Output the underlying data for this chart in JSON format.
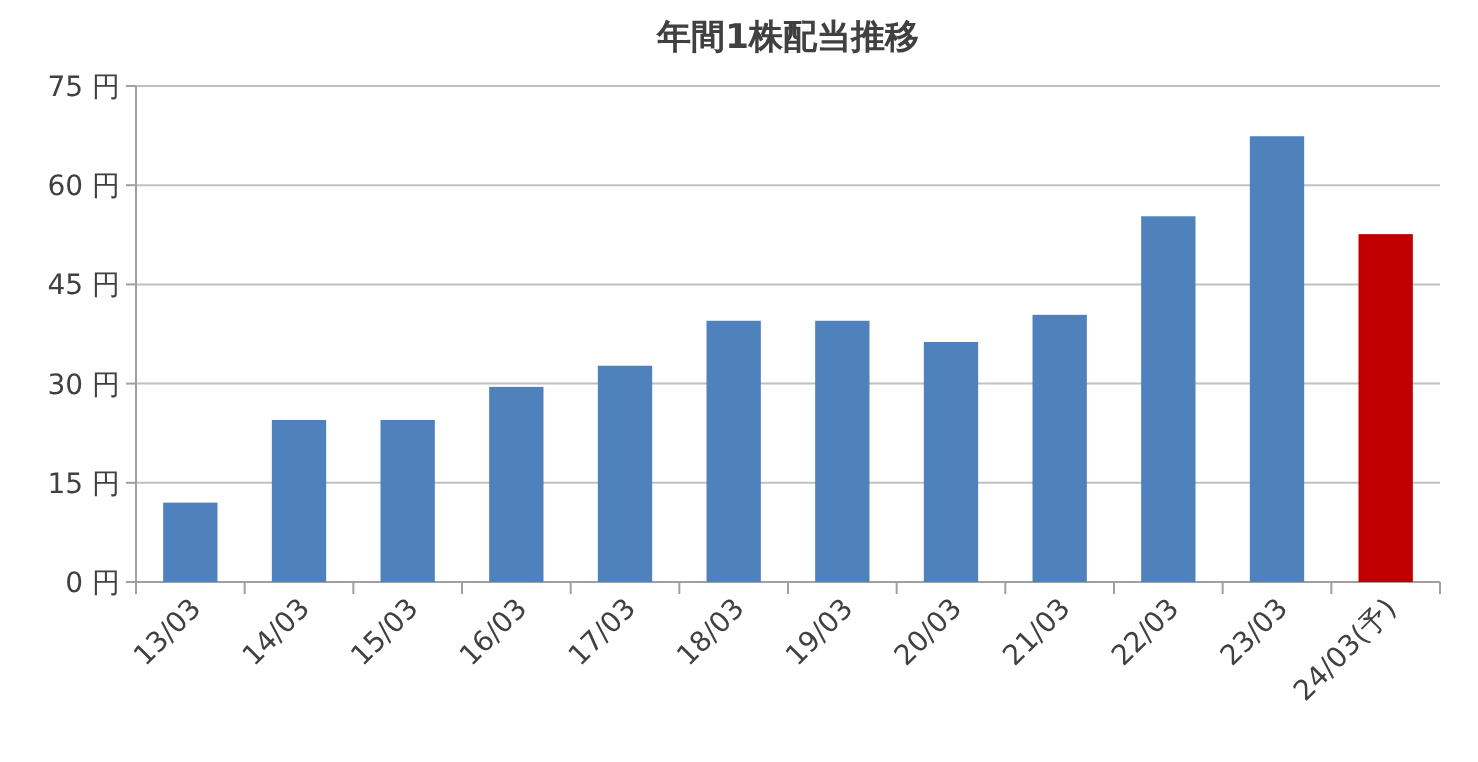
{
  "chart_data": {
    "type": "bar",
    "title": "年間1株配当推移",
    "categories": [
      "13/03",
      "14/03",
      "15/03",
      "16/03",
      "17/03",
      "18/03",
      "19/03",
      "20/03",
      "21/03",
      "22/03",
      "23/03",
      "24/03(予)"
    ],
    "values": [
      12,
      24.5,
      24.5,
      29.5,
      32.7,
      39.5,
      39.5,
      36.3,
      40.4,
      55.3,
      67.4,
      52.6
    ],
    "colors": [
      "#4f81bd",
      "#4f81bd",
      "#4f81bd",
      "#4f81bd",
      "#4f81bd",
      "#4f81bd",
      "#4f81bd",
      "#4f81bd",
      "#4f81bd",
      "#4f81bd",
      "#4f81bd",
      "#c00000"
    ],
    "ylim": [
      0,
      75
    ],
    "yticks": [
      {
        "value": 0,
        "label": "0 円"
      },
      {
        "value": 15,
        "label": "15 円"
      },
      {
        "value": 30,
        "label": "30 円"
      },
      {
        "value": 45,
        "label": "45 円"
      },
      {
        "value": 60,
        "label": "60 円"
      },
      {
        "value": 75,
        "label": "75 円"
      }
    ],
    "grid": "y"
  }
}
